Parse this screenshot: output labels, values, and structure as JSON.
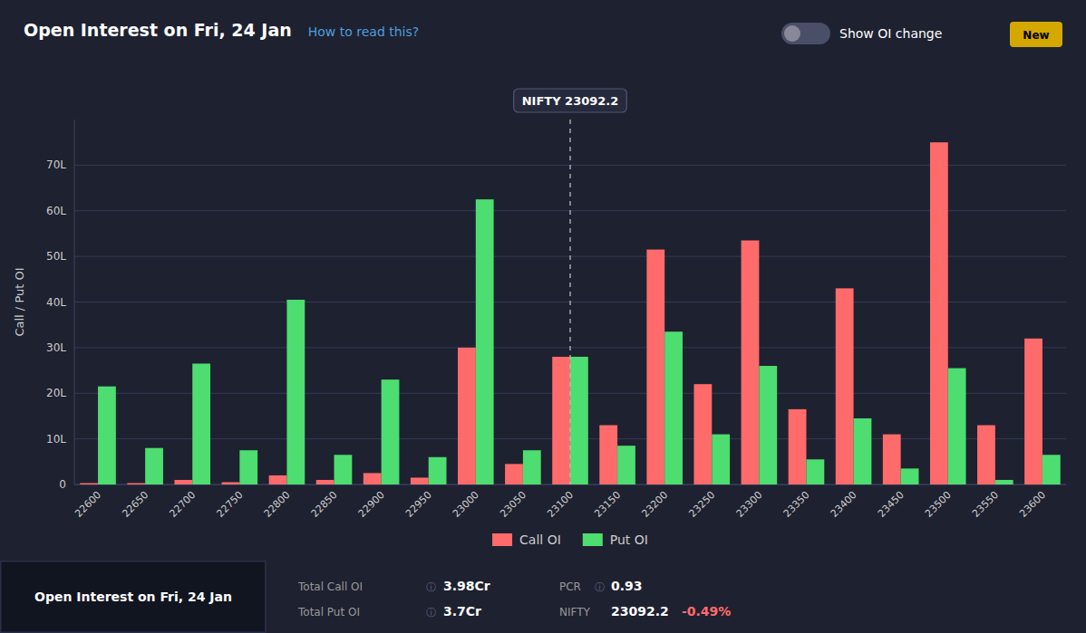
{
  "chart_data": {
    "type": "bar",
    "title": "Open Interest on Fri, 24 Jan",
    "subtitle": "How to read this?",
    "y_label": "Call / Put OI",
    "categories": [
      22600,
      22650,
      22700,
      22750,
      22800,
      22850,
      22900,
      22950,
      23000,
      23050,
      23100,
      23150,
      23200,
      23250,
      23300,
      23350,
      23400,
      23450,
      23500,
      23550,
      23600
    ],
    "series": [
      {
        "name": "Call OI",
        "color": "#ff6b6b",
        "values": [
          0.3,
          0.3,
          1.0,
          0.5,
          2.0,
          1.0,
          2.5,
          1.5,
          30.0,
          4.5,
          28.0,
          13.0,
          51.5,
          22.0,
          53.5,
          16.5,
          43.0,
          11.0,
          75.0,
          13.0,
          32.0
        ]
      },
      {
        "name": "Put OI",
        "color": "#4ddd70",
        "values": [
          21.5,
          8.0,
          26.5,
          7.5,
          40.5,
          6.5,
          23.0,
          6.0,
          62.5,
          7.5,
          28.0,
          8.5,
          33.5,
          11.0,
          26.0,
          5.5,
          14.5,
          3.5,
          25.5,
          1.0,
          6.5
        ]
      }
    ],
    "ylim": [
      0,
      80
    ],
    "yticks": [
      0,
      {
        "value": 10,
        "label": "10L"
      },
      {
        "value": 20,
        "label": "20L"
      },
      {
        "value": 30,
        "label": "30L"
      },
      {
        "value": 40,
        "label": "40L"
      },
      {
        "value": 50,
        "label": "50L"
      },
      {
        "value": 60,
        "label": "60L"
      },
      {
        "value": 70,
        "label": "70L"
      }
    ],
    "grid": true,
    "legend": "bottom",
    "annotations": [
      {
        "text": "NIFTY 23092.2",
        "x": 23100
      },
      {
        "text": "Show OI change"
      },
      {
        "text": "New"
      },
      {
        "text": "Open Interest on Fri, 24 Jan"
      },
      {
        "text": "Total Call OI"
      },
      {
        "text": "ⓘ"
      },
      {
        "text": "3.98Cr"
      },
      {
        "text": "Total Put OI"
      },
      {
        "text": "ⓘ"
      },
      {
        "text": "3.7Cr"
      },
      {
        "text": "PCR"
      },
      {
        "text": "ⓘ"
      },
      {
        "text": "0.93"
      },
      {
        "text": "NIFTY"
      },
      {
        "text": "23092.2"
      },
      {
        "text": "-0.49%",
        "color": "#ff6b6b"
      }
    ]
  }
}
